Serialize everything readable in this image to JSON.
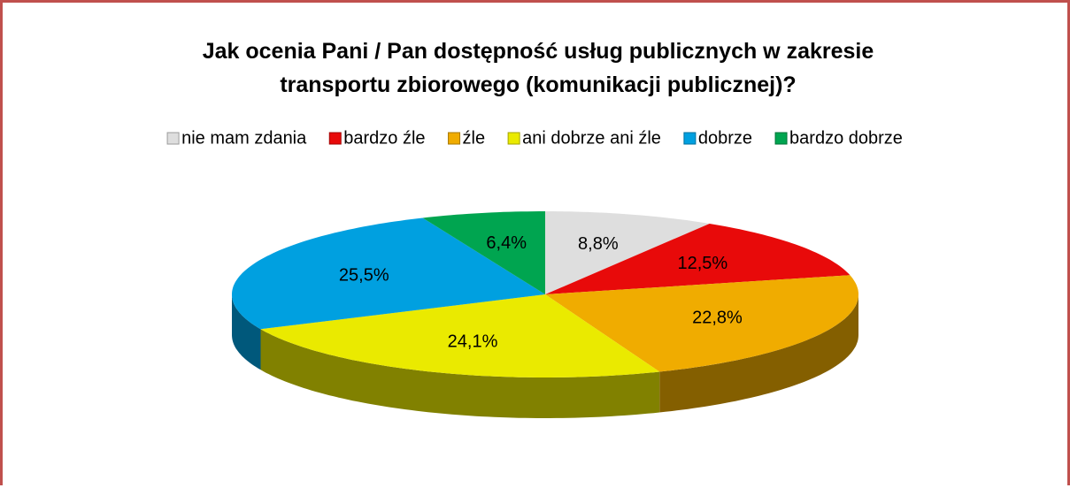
{
  "chart_data": {
    "type": "pie",
    "title": "Jak ocenia Pani / Pan dostępność usług publicznych w zakresie transportu zbiorowego (komunikacji publicznej)?",
    "categories": [
      "nie mam zdania",
      "bardzo źle",
      "źle",
      "ani dobrze ani źle",
      "dobrze",
      "bardzo dobrze"
    ],
    "values": [
      8.8,
      12.5,
      22.8,
      24.1,
      25.5,
      6.4
    ],
    "value_labels": [
      "8,8%",
      "12,5%",
      "22,8%",
      "24,1%",
      "25,5%",
      "6,4%"
    ],
    "colors": [
      "#dedede",
      "#e80a0a",
      "#f0ac00",
      "#eaea00",
      "#00a0e0",
      "#00a550"
    ],
    "legend": "top"
  }
}
